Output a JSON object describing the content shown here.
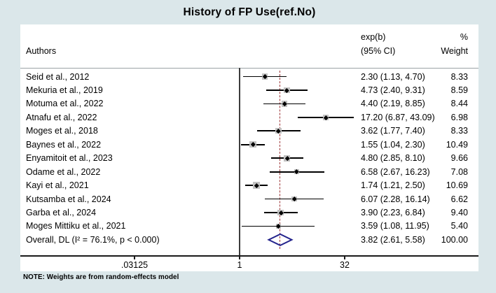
{
  "title": "History of FP Use(ref.No)",
  "columns": {
    "authors": "Authors",
    "effect_line1": "exp(b)",
    "effect_line2": "(95% CI)",
    "weight_line1": "%",
    "weight_line2": "Weight"
  },
  "note": "NOTE: Weights are from random-effects model",
  "colors": {
    "background": "#dbe7ea",
    "panel": "#ffffff",
    "ci_line": "#000000",
    "weight_box": "#c2c2c2",
    "null_line": "#3c3c3c",
    "overall_dash_line": "#9c3234",
    "diamond": "#23238c"
  },
  "chart_data": {
    "type": "forest",
    "x_scale": "log2",
    "x_ticks": [
      {
        "label": ".03125",
        "value": 0.03125
      },
      {
        "label": "1",
        "value": 1
      },
      {
        "label": "32",
        "value": 32
      }
    ],
    "null_value": 1,
    "overall_dash_at": 3.82,
    "studies": [
      {
        "author": "Seid et al., 2012",
        "est": 2.3,
        "lo": 1.13,
        "hi": 4.7,
        "ci_label": "2.30 (1.13, 4.70)",
        "weight": 8.33,
        "weight_label": "8.33"
      },
      {
        "author": "Mekuria et al., 2019",
        "est": 4.73,
        "lo": 2.4,
        "hi": 9.31,
        "ci_label": "4.73 (2.40, 9.31)",
        "weight": 8.59,
        "weight_label": "8.59"
      },
      {
        "author": "Motuma et al., 2022",
        "est": 4.4,
        "lo": 2.19,
        "hi": 8.85,
        "ci_label": "4.40 (2.19, 8.85)",
        "weight": 8.44,
        "weight_label": "8.44"
      },
      {
        "author": "Atnafu et al., 2022",
        "est": 17.2,
        "lo": 6.87,
        "hi": 43.09,
        "ci_label": "17.20 (6.87, 43.09)",
        "weight": 6.98,
        "weight_label": "6.98"
      },
      {
        "author": "Moges et al., 2018",
        "est": 3.62,
        "lo": 1.77,
        "hi": 7.4,
        "ci_label": "3.62 (1.77, 7.40)",
        "weight": 8.33,
        "weight_label": "8.33"
      },
      {
        "author": "Baynes et al., 2022",
        "est": 1.55,
        "lo": 1.04,
        "hi": 2.3,
        "ci_label": "1.55 (1.04, 2.30)",
        "weight": 10.49,
        "weight_label": "10.49"
      },
      {
        "author": "Enyamitoit et al., 2023",
        "est": 4.8,
        "lo": 2.85,
        "hi": 8.1,
        "ci_label": "4.80 (2.85, 8.10)",
        "weight": 9.66,
        "weight_label": "9.66"
      },
      {
        "author": "Odame et al., 2022",
        "est": 6.58,
        "lo": 2.67,
        "hi": 16.23,
        "ci_label": "6.58 (2.67, 16.23)",
        "weight": 7.08,
        "weight_label": "7.08"
      },
      {
        "author": "Kayi et al., 2021",
        "est": 1.74,
        "lo": 1.21,
        "hi": 2.5,
        "ci_label": "1.74 (1.21, 2.50)",
        "weight": 10.69,
        "weight_label": "10.69"
      },
      {
        "author": "Kutsamba et al., 2024",
        "est": 6.07,
        "lo": 2.28,
        "hi": 16.14,
        "ci_label": "6.07 (2.28, 16.14)",
        "weight": 6.62,
        "weight_label": "6.62"
      },
      {
        "author": "Garba et al., 2024",
        "est": 3.9,
        "lo": 2.23,
        "hi": 6.84,
        "ci_label": "3.90 (2.23, 6.84)",
        "weight": 9.4,
        "weight_label": "9.40"
      },
      {
        "author": "Moges Mittiku et al., 2021",
        "est": 3.59,
        "lo": 1.08,
        "hi": 11.95,
        "ci_label": "3.59 (1.08, 11.95)",
        "weight": 5.4,
        "weight_label": "5.40"
      }
    ],
    "overall": {
      "label": "Overall, DL (I² = 76.1%, p < 0.000)",
      "est": 3.82,
      "lo": 2.61,
      "hi": 5.58,
      "ci_label": "3.82 (2.61, 5.58)",
      "weight": 100.0,
      "weight_label": "100.00"
    }
  }
}
